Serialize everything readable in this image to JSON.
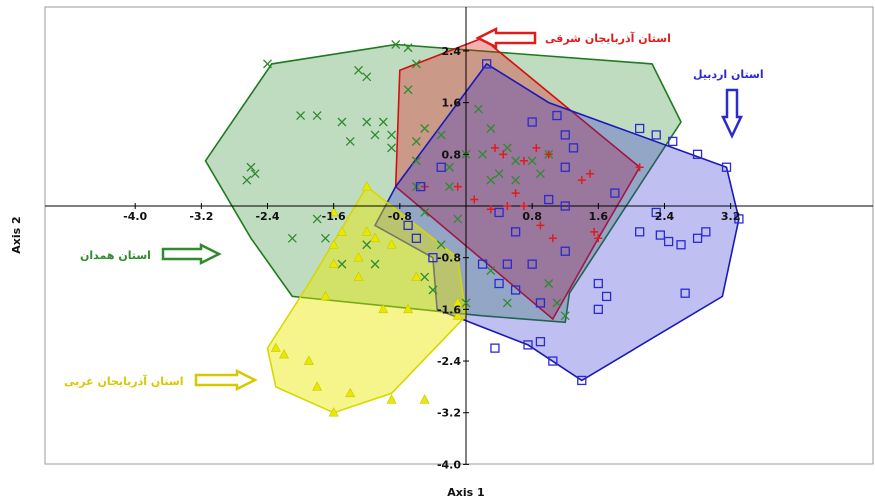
{
  "chart_data": {
    "type": "scatter",
    "xlabel": "Axis 1",
    "ylabel": "Axis 2",
    "xlim": [
      -4.0,
      3.2
    ],
    "ylim": [
      -4.0,
      2.6
    ],
    "x_ticks": [
      "-4.0",
      "-3.2",
      "-2.4",
      "-1.6",
      "-0.8",
      "0.8",
      "1.6",
      "2.4",
      "3.2"
    ],
    "y_ticks": [
      "2.4",
      "1.6",
      "0.8",
      "-0.8",
      "-1.6",
      "-2.4",
      "-3.2",
      "-4.0"
    ],
    "grid": false,
    "series": [
      {
        "name": "استان همدان",
        "color": "#2e8b2e",
        "marker": "x",
        "hull": [
          [
            -3.15,
            0.7
          ],
          [
            -2.35,
            2.2
          ],
          [
            -0.85,
            2.5
          ],
          [
            2.25,
            2.2
          ],
          [
            2.6,
            1.3
          ],
          [
            1.25,
            -1.35
          ],
          [
            1.2,
            -1.8
          ],
          [
            0.2,
            -1.7
          ],
          [
            -2.1,
            -1.4
          ],
          [
            -2.6,
            -0.5
          ]
        ],
        "points": [
          [
            -2.4,
            2.2
          ],
          [
            -0.85,
            2.5
          ],
          [
            -0.7,
            2.45
          ],
          [
            -0.6,
            2.2
          ],
          [
            -1.3,
            2.1
          ],
          [
            -1.2,
            2.0
          ],
          [
            -0.7,
            1.8
          ],
          [
            -2.0,
            1.4
          ],
          [
            -1.8,
            1.4
          ],
          [
            -1.5,
            1.3
          ],
          [
            -1.2,
            1.3
          ],
          [
            -1.0,
            1.3
          ],
          [
            -0.9,
            1.1
          ],
          [
            -1.1,
            1.1
          ],
          [
            -1.4,
            1.0
          ],
          [
            -0.9,
            0.9
          ],
          [
            -0.5,
            1.2
          ],
          [
            -0.3,
            1.1
          ],
          [
            -0.6,
            1.0
          ],
          [
            0.15,
            1.5
          ],
          [
            0.3,
            1.2
          ],
          [
            0.3,
            0.4
          ],
          [
            -0.6,
            0.7
          ],
          [
            -0.2,
            0.6
          ],
          [
            0.0,
            0.8
          ],
          [
            0.2,
            0.8
          ],
          [
            0.5,
            0.9
          ],
          [
            0.6,
            0.7
          ],
          [
            0.8,
            0.7
          ],
          [
            1.0,
            0.8
          ],
          [
            0.4,
            0.5
          ],
          [
            0.6,
            0.4
          ],
          [
            0.9,
            0.5
          ],
          [
            -2.6,
            0.6
          ],
          [
            -2.65,
            0.4
          ],
          [
            -2.55,
            0.5
          ],
          [
            -0.6,
            0.3
          ],
          [
            -0.5,
            -0.1
          ],
          [
            -0.2,
            0.3
          ],
          [
            -0.1,
            -0.2
          ],
          [
            -1.8,
            -0.2
          ],
          [
            -1.7,
            -0.5
          ],
          [
            -2.1,
            -0.5
          ],
          [
            -1.5,
            -0.9
          ],
          [
            -1.1,
            -0.9
          ],
          [
            -0.5,
            -1.1
          ],
          [
            -0.4,
            -1.3
          ],
          [
            0.0,
            -1.5
          ],
          [
            0.5,
            -1.5
          ],
          [
            0.3,
            -1.0
          ],
          [
            1.0,
            -1.2
          ],
          [
            1.2,
            -1.7
          ],
          [
            1.1,
            -1.5
          ],
          [
            -0.3,
            -0.6
          ],
          [
            -1.2,
            -0.6
          ]
        ]
      },
      {
        "name": "استان آذربایجان شرقی",
        "color": "#e01c1c",
        "marker": "+",
        "hull": [
          [
            -0.8,
            2.1
          ],
          [
            0.2,
            2.6
          ],
          [
            2.1,
            0.6
          ],
          [
            1.6,
            -0.5
          ],
          [
            1.05,
            -1.75
          ],
          [
            -0.85,
            0.3
          ]
        ],
        "points": [
          [
            -0.5,
            0.3
          ],
          [
            -0.1,
            0.3
          ],
          [
            0.1,
            0.1
          ],
          [
            0.35,
            0.9
          ],
          [
            0.45,
            0.8
          ],
          [
            0.7,
            0.7
          ],
          [
            0.85,
            0.9
          ],
          [
            1.0,
            0.8
          ],
          [
            1.4,
            0.4
          ],
          [
            1.5,
            0.5
          ],
          [
            2.1,
            0.6
          ],
          [
            0.5,
            0.0
          ],
          [
            0.7,
            0.0
          ],
          [
            0.9,
            -0.3
          ],
          [
            1.05,
            -0.5
          ],
          [
            1.6,
            -0.5
          ],
          [
            1.55,
            -0.4
          ],
          [
            0.3,
            -0.05
          ],
          [
            0.6,
            0.2
          ]
        ]
      },
      {
        "name": "استان اردبیل",
        "color": "#2a2ad0",
        "marker": "square",
        "hull": [
          [
            0.25,
            2.2
          ],
          [
            -0.85,
            0.3
          ],
          [
            -1.1,
            -0.3
          ],
          [
            -0.4,
            -0.8
          ],
          [
            -0.35,
            -1.6
          ],
          [
            0.75,
            -2.15
          ],
          [
            1.4,
            -2.7
          ],
          [
            3.1,
            -1.4
          ],
          [
            3.3,
            -0.2
          ],
          [
            3.15,
            0.6
          ],
          [
            1.0,
            1.6
          ]
        ],
        "points": [
          [
            0.25,
            2.2
          ],
          [
            -0.3,
            0.6
          ],
          [
            0.8,
            1.3
          ],
          [
            1.1,
            1.4
          ],
          [
            1.2,
            1.1
          ],
          [
            1.3,
            0.9
          ],
          [
            2.1,
            1.2
          ],
          [
            2.3,
            1.1
          ],
          [
            2.5,
            1.0
          ],
          [
            2.8,
            0.8
          ],
          [
            3.15,
            0.6
          ],
          [
            3.3,
            -0.2
          ],
          [
            2.9,
            -0.4
          ],
          [
            2.8,
            -0.5
          ],
          [
            2.6,
            -0.6
          ],
          [
            2.45,
            -0.55
          ],
          [
            2.35,
            -0.45
          ],
          [
            2.1,
            -0.4
          ],
          [
            2.3,
            -0.1
          ],
          [
            1.8,
            0.2
          ],
          [
            1.2,
            0.0
          ],
          [
            1.0,
            0.1
          ],
          [
            0.4,
            -0.1
          ],
          [
            0.6,
            -0.4
          ],
          [
            0.5,
            -0.9
          ],
          [
            0.2,
            -0.9
          ],
          [
            0.8,
            -0.9
          ],
          [
            1.2,
            -0.7
          ],
          [
            0.4,
            -1.2
          ],
          [
            0.6,
            -1.3
          ],
          [
            0.9,
            -1.5
          ],
          [
            1.6,
            -1.2
          ],
          [
            1.7,
            -1.4
          ],
          [
            1.6,
            -1.6
          ],
          [
            2.65,
            -1.35
          ],
          [
            0.75,
            -2.15
          ],
          [
            0.9,
            -2.1
          ],
          [
            0.35,
            -2.2
          ],
          [
            1.05,
            -2.4
          ],
          [
            1.4,
            -2.7
          ],
          [
            -0.4,
            -0.8
          ],
          [
            -0.6,
            -0.5
          ],
          [
            -0.7,
            -0.3
          ],
          [
            -0.55,
            0.3
          ],
          [
            1.2,
            0.6
          ]
        ]
      },
      {
        "name": "استان آذربایجان غربی",
        "color": "#e8e800",
        "marker": "triangle",
        "hull": [
          [
            -1.2,
            0.3
          ],
          [
            -0.1,
            -0.8
          ],
          [
            0.0,
            -1.7
          ],
          [
            -0.9,
            -2.9
          ],
          [
            -1.6,
            -3.2
          ],
          [
            -2.3,
            -2.8
          ],
          [
            -2.4,
            -2.2
          ],
          [
            -1.9,
            -1.2
          ]
        ],
        "points": [
          [
            -1.2,
            0.3
          ],
          [
            -1.6,
            -0.1
          ],
          [
            -1.5,
            -0.4
          ],
          [
            -1.2,
            -0.4
          ],
          [
            -1.1,
            -0.5
          ],
          [
            -1.6,
            -0.6
          ],
          [
            -1.3,
            -0.8
          ],
          [
            -0.9,
            -0.6
          ],
          [
            -1.6,
            -0.9
          ],
          [
            -1.3,
            -1.1
          ],
          [
            -0.6,
            -1.1
          ],
          [
            -0.1,
            -1.5
          ],
          [
            -1.7,
            -1.4
          ],
          [
            -1.0,
            -1.6
          ],
          [
            -0.7,
            -1.6
          ],
          [
            -0.1,
            -1.7
          ],
          [
            -2.3,
            -2.2
          ],
          [
            -2.2,
            -2.3
          ],
          [
            -1.9,
            -2.4
          ],
          [
            -1.8,
            -2.8
          ],
          [
            -1.4,
            -2.9
          ],
          [
            -1.6,
            -3.2
          ],
          [
            -0.9,
            -3.0
          ],
          [
            -0.5,
            -3.0
          ]
        ]
      }
    ]
  },
  "annotations": [
    {
      "text": "استان آذربایجان شرقی",
      "color": "#e01c1c"
    },
    {
      "text": "استان اردبیل",
      "color": "#2a2ad0"
    },
    {
      "text": "استان همدان",
      "color": "#2e8b2e"
    },
    {
      "text": "استان آذربایجان غربی",
      "color": "#d8c800"
    }
  ]
}
